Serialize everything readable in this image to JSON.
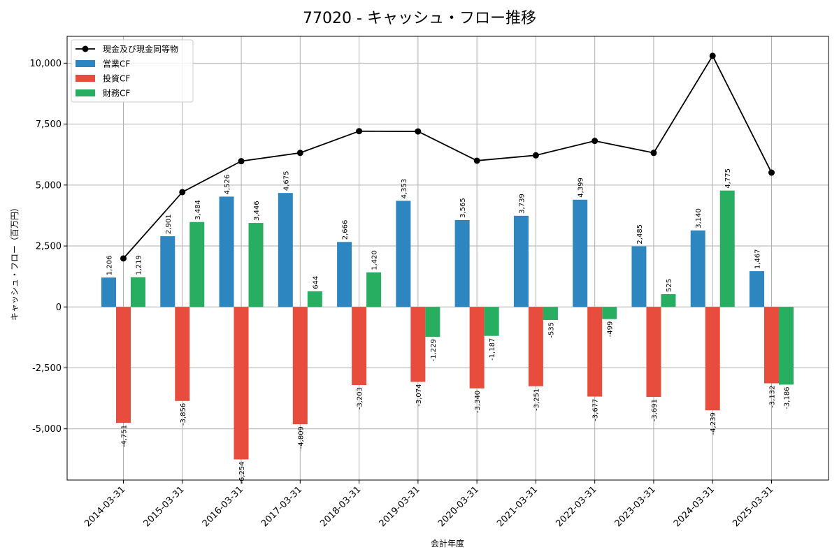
{
  "chart_data": {
    "type": "bar",
    "title": "77020 - キャッシュ・フロー推移",
    "xlabel": "会計年度",
    "ylabel": "キャッシュ・フロー（百万円）",
    "categories": [
      "2014-03-31",
      "2015-03-31",
      "2016-03-31",
      "2017-03-31",
      "2018-03-31",
      "2019-03-31",
      "2020-03-31",
      "2021-03-31",
      "2022-03-31",
      "2023-03-31",
      "2024-03-31",
      "2025-03-31"
    ],
    "series": [
      {
        "name": "営業CF",
        "type": "bar",
        "color": "#2e86c1",
        "values": [
          1206,
          2901,
          4526,
          4675,
          2666,
          4353,
          3565,
          3739,
          4399,
          2485,
          3140,
          1467
        ]
      },
      {
        "name": "投資CF",
        "type": "bar",
        "color": "#e74c3c",
        "values": [
          -4751,
          -3856,
          -6254,
          -4809,
          -3203,
          -3074,
          -3340,
          -3251,
          -3677,
          -3691,
          -4239,
          -3132
        ]
      },
      {
        "name": "財務CF",
        "type": "bar",
        "color": "#27ae60",
        "values": [
          1219,
          3484,
          3446,
          644,
          1420,
          -1229,
          -1187,
          -535,
          -499,
          525,
          4775,
          -3186
        ]
      },
      {
        "name": "現金及び現金同等物",
        "type": "line",
        "color": "#000000",
        "values": [
          1990,
          4710,
          5980,
          6320,
          7210,
          7200,
          6000,
          6220,
          6810,
          6320,
          10300,
          5510
        ]
      }
    ],
    "data_labels": {
      "営業CF": [
        "1,206",
        "2,901",
        "4,526",
        "4,675",
        "2,666",
        "4,353",
        "3,565",
        "3,739",
        "4,399",
        "2,485",
        "3,140",
        "1,467"
      ],
      "投資CF": [
        "-4,751",
        "-3,856",
        "-6,254",
        "-4,809",
        "-3,203",
        "-3,074",
        "-3,340",
        "-3,251",
        "-3,677",
        "-3,691",
        "-4,239",
        "-3,132"
      ],
      "財務CF": [
        "1,219",
        "3,484",
        "3,446",
        "644",
        "1,420",
        "-1,229",
        "-1,187",
        "-535",
        "-499",
        "525",
        "4,775",
        "-3,186"
      ]
    },
    "yticks": [
      -5000,
      -2500,
      0,
      2500,
      5000,
      7500,
      10000
    ],
    "ytick_labels": [
      "-5,000",
      "-2,500",
      "0",
      "2,500",
      "5,000",
      "7,500",
      "10,000"
    ],
    "ylim": [
      -7100,
      11100
    ],
    "grid": true,
    "legend_position": "top-left"
  }
}
